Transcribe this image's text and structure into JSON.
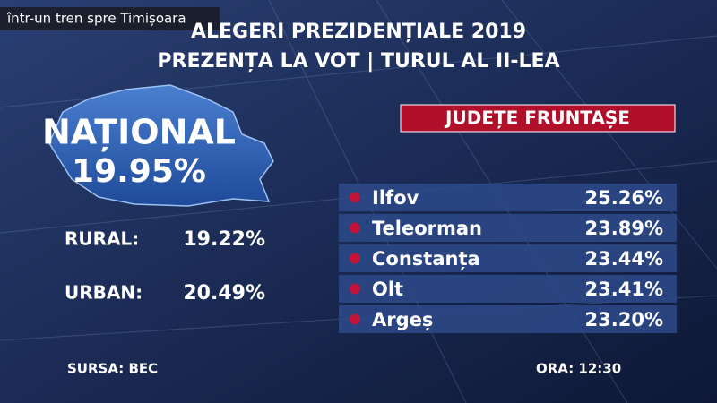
{
  "overlay": {
    "label": "într-un tren spre Timișoara"
  },
  "header": {
    "title": "ALEGERI PREZIDENȚIALE 2019",
    "subtitle": "PREZENȚA LA VOT | TURUL AL II-LEA"
  },
  "national": {
    "label": "NAȚIONAL",
    "value": "19.95%"
  },
  "breakdown": [
    {
      "label": "RURAL:",
      "value": "19.22%"
    },
    {
      "label": "URBAN:",
      "value": "20.49%"
    }
  ],
  "counties": {
    "title": "JUDEȚE FRUNTAȘE",
    "rows": [
      [
        "Ilfov",
        "25.26%"
      ],
      [
        "Teleorman",
        "23.89%"
      ],
      [
        "Constanța",
        "23.44%"
      ],
      [
        "Olt",
        "23.41%"
      ],
      [
        "Argeș",
        "23.20%"
      ]
    ]
  },
  "footer": {
    "source": "SURSA: BEC",
    "time": "ORA: 12:30"
  }
}
